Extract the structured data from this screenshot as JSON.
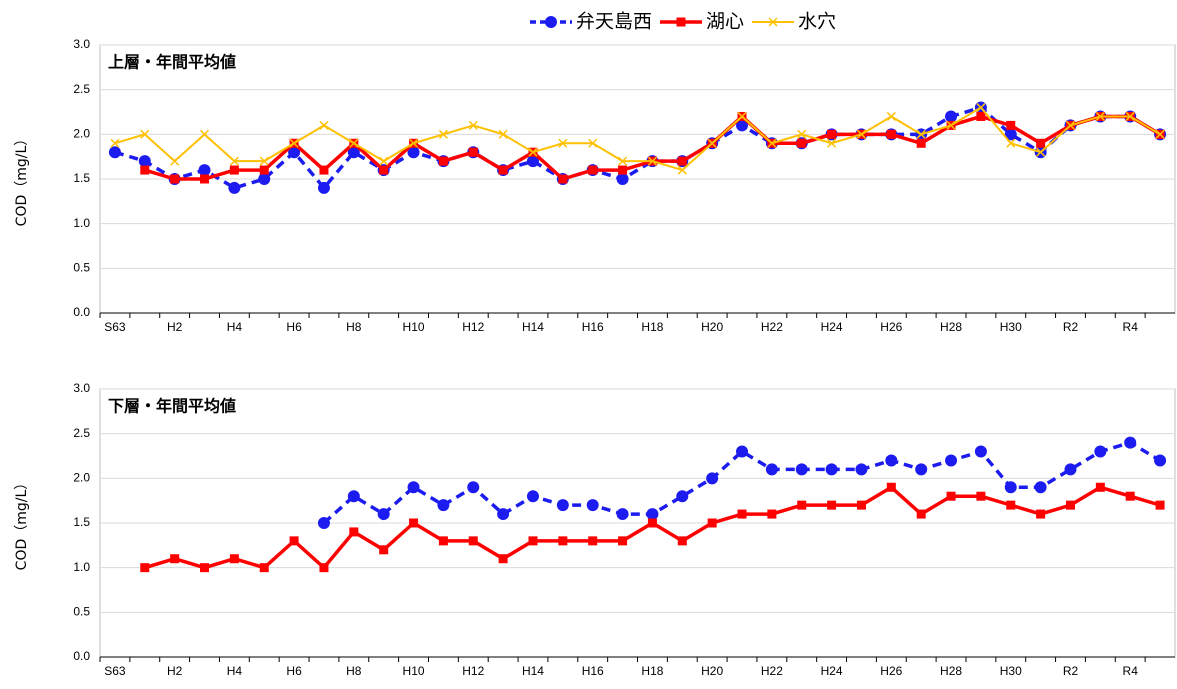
{
  "chart_data": [
    {
      "type": "line",
      "title": "上層・年間平均値",
      "y_label": "COD（mg/L）",
      "categories": [
        "S63",
        null,
        "H2",
        null,
        "H4",
        null,
        "H6",
        null,
        "H8",
        null,
        "H10",
        null,
        "H12",
        null,
        "H14",
        null,
        "H16",
        null,
        "H18",
        null,
        "H20",
        null,
        "H22",
        null,
        "H24",
        null,
        "H26",
        null,
        "H28",
        null,
        "H30",
        null,
        "R2",
        null,
        "R4",
        null
      ],
      "series": [
        {
          "name": "弁天島西",
          "color": "#1c1cf0",
          "values": [
            1.8,
            1.7,
            1.5,
            1.6,
            1.4,
            1.5,
            1.8,
            1.4,
            1.8,
            1.6,
            1.8,
            1.7,
            1.8,
            1.6,
            1.7,
            1.5,
            1.6,
            1.5,
            1.7,
            1.7,
            1.9,
            2.1,
            1.9,
            1.9,
            2.0,
            2.0,
            2.0,
            2.0,
            2.2,
            2.3,
            2.0,
            1.8,
            2.1,
            2.2,
            2.2,
            2.0
          ]
        },
        {
          "name": "湖心",
          "color": "#ff0000",
          "values": [
            null,
            1.6,
            1.5,
            1.5,
            1.6,
            1.6,
            1.9,
            1.6,
            1.9,
            1.6,
            1.9,
            1.7,
            1.8,
            1.6,
            1.8,
            1.5,
            1.6,
            1.6,
            1.7,
            1.7,
            1.9,
            2.2,
            1.9,
            1.9,
            2.0,
            2.0,
            2.0,
            1.9,
            2.1,
            2.2,
            2.1,
            1.9,
            2.1,
            2.2,
            2.2,
            2.0
          ]
        },
        {
          "name": "水穴",
          "color": "#ffc000",
          "values": [
            1.9,
            2.0,
            1.7,
            2.0,
            1.7,
            1.7,
            1.9,
            2.1,
            1.9,
            1.7,
            1.9,
            2.0,
            2.1,
            2.0,
            1.8,
            1.9,
            1.9,
            1.7,
            1.7,
            1.6,
            1.9,
            2.2,
            1.9,
            2.0,
            1.9,
            2.0,
            2.2,
            2.0,
            2.1,
            2.3,
            1.9,
            1.8,
            2.1,
            2.2,
            2.2,
            2.0
          ]
        }
      ],
      "ylim": [
        0,
        3
      ],
      "yticks": [
        {
          "value": 0,
          "label": "0.0"
        },
        {
          "value": 0.5,
          "label": "0.5"
        },
        {
          "value": 1,
          "label": "1.0"
        },
        {
          "value": 1.5,
          "label": "1.5"
        },
        {
          "value": 2,
          "label": "2.0"
        },
        {
          "value": 2.5,
          "label": "2.5"
        },
        {
          "value": 3,
          "label": "3.0"
        }
      ],
      "grid": true
    },
    {
      "type": "line",
      "title": "下層・年間平均値",
      "y_label": "COD（mg/L）",
      "categories": [
        "S63",
        null,
        "H2",
        null,
        "H4",
        null,
        "H6",
        null,
        "H8",
        null,
        "H10",
        null,
        "H12",
        null,
        "H14",
        null,
        "H16",
        null,
        "H18",
        null,
        "H20",
        null,
        "H22",
        null,
        "H24",
        null,
        "H26",
        null,
        "H28",
        null,
        "H30",
        null,
        "R2",
        null,
        "R4",
        null
      ],
      "series": [
        {
          "color": "#1c1cf0",
          "values": [
            null,
            null,
            null,
            null,
            null,
            null,
            null,
            1.5,
            1.8,
            1.6,
            1.9,
            1.7,
            1.9,
            1.6,
            1.8,
            1.7,
            1.7,
            1.6,
            1.6,
            1.8,
            2.0,
            2.3,
            2.1,
            2.1,
            2.1,
            2.1,
            2.2,
            2.1,
            2.2,
            2.3,
            1.9,
            1.9,
            2.1,
            2.3,
            2.4,
            2.2
          ]
        },
        {
          "color": "#ff0000",
          "values": [
            null,
            1.0,
            1.1,
            1.0,
            1.1,
            1.0,
            1.3,
            1.0,
            1.4,
            1.2,
            1.5,
            1.3,
            1.3,
            1.1,
            1.3,
            1.3,
            1.3,
            1.3,
            1.5,
            1.3,
            1.5,
            1.6,
            1.6,
            1.7,
            1.7,
            1.7,
            1.9,
            1.6,
            1.8,
            1.8,
            1.7,
            1.6,
            1.7,
            1.9,
            1.8,
            1.7
          ]
        }
      ],
      "ylim": [
        0,
        3
      ],
      "yticks": [
        {
          "value": 0,
          "label": "0.0"
        },
        {
          "value": 0.5,
          "label": "0.5"
        },
        {
          "value": 1,
          "label": "1.0"
        },
        {
          "value": 1.5,
          "label": "1.5"
        },
        {
          "value": 2,
          "label": "2.0"
        },
        {
          "value": 2.5,
          "label": "2.5"
        },
        {
          "value": 3,
          "label": "3.0"
        }
      ],
      "grid": true
    }
  ]
}
